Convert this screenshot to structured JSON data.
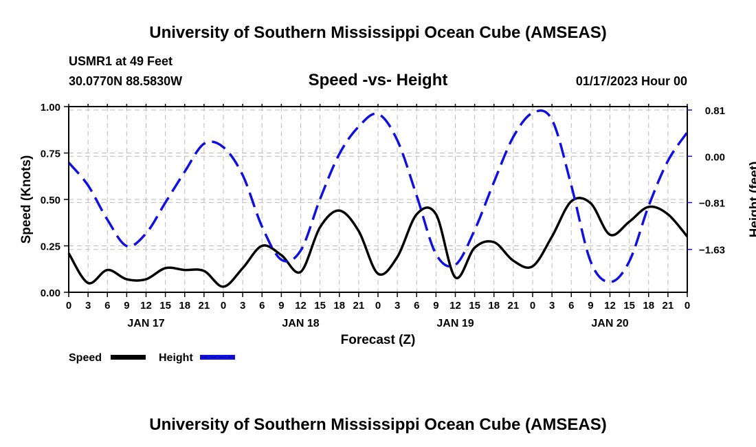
{
  "header": {
    "title": "University of Southern Mississippi Ocean Cube (AMSEAS)",
    "station": "USMR1 at 49 Feet",
    "coords": "30.0770N  88.5830W",
    "date": "01/17/2023 Hour 00",
    "footer": "University of Southern Mississippi Ocean Cube (AMSEAS)"
  },
  "chart_data": {
    "type": "line",
    "title": "Speed -vs- Height",
    "xlabel": "Forecast (Z)",
    "ylabel": "Speed (Knots)",
    "y2label": "Height (feet)",
    "xlim": [
      0,
      96
    ],
    "ylim": [
      0,
      1
    ],
    "y2lim": [
      -2.38,
      0.87
    ],
    "x_ticks": [
      "0",
      "3",
      "6",
      "9",
      "12",
      "15",
      "18",
      "21",
      "0",
      "3",
      "6",
      "9",
      "12",
      "15",
      "18",
      "21",
      "0",
      "3",
      "6",
      "9",
      "12",
      "15",
      "18",
      "21",
      "0",
      "3",
      "6",
      "9",
      "12",
      "15",
      "18",
      "21",
      "0"
    ],
    "day_labels": [
      "JAN 17",
      "JAN 18",
      "JAN 19",
      "JAN 20"
    ],
    "y_ticks": [
      "0.00",
      "0.25",
      "0.50",
      "0.75",
      "1.00"
    ],
    "y2_ticks": [
      {
        "v": 0.81,
        "label": "0.81"
      },
      {
        "v": 0,
        "label": "0.00"
      },
      {
        "v": -0.81,
        "label": "−0.81"
      },
      {
        "v": -1.63,
        "label": "−1.63"
      }
    ],
    "x": [
      0,
      3,
      6,
      9,
      12,
      15,
      18,
      21,
      24,
      27,
      30,
      33,
      36,
      39,
      42,
      45,
      48,
      51,
      54,
      57,
      60,
      63,
      66,
      69,
      72,
      75,
      78,
      81,
      84,
      87,
      90,
      93,
      96
    ],
    "series": [
      {
        "name": "Speed",
        "axis": "left",
        "color": "#000000",
        "dash": false,
        "values": [
          0.21,
          0.05,
          0.12,
          0.07,
          0.07,
          0.13,
          0.12,
          0.115,
          0.03,
          0.13,
          0.25,
          0.2,
          0.11,
          0.35,
          0.44,
          0.33,
          0.1,
          0.19,
          0.42,
          0.42,
          0.08,
          0.24,
          0.27,
          0.17,
          0.14,
          0.3,
          0.49,
          0.48,
          0.31,
          0.38,
          0.46,
          0.42,
          0.3
        ]
      },
      {
        "name": "Height",
        "axis": "right",
        "color": "#1010e0",
        "dash": true,
        "values": [
          -0.11,
          -0.51,
          -1.11,
          -1.57,
          -1.35,
          -0.81,
          -0.27,
          0.22,
          0.16,
          -0.33,
          -1.23,
          -1.81,
          -1.65,
          -0.75,
          0.04,
          0.52,
          0.74,
          0.28,
          -0.69,
          -1.71,
          -1.9,
          -1.29,
          -0.45,
          0.34,
          0.76,
          0.64,
          -0.51,
          -1.84,
          -2.2,
          -1.84,
          -0.87,
          -0.08,
          0.42
        ]
      }
    ],
    "legend": "bottom-left",
    "grid": true
  }
}
